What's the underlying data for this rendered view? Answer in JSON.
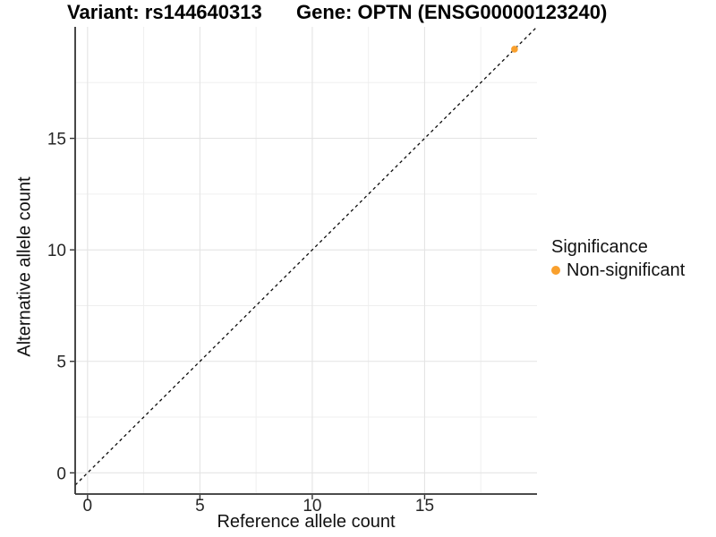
{
  "chart_data": {
    "type": "scatter",
    "title_left": "Variant: rs144640313",
    "title_right": "Gene: OPTN (ENSG00000123240)",
    "xlabel": "Reference allele count",
    "ylabel": "Alternative allele count",
    "xlim": [
      -0.55,
      20
    ],
    "ylim": [
      -0.95,
      20
    ],
    "x_major_ticks": [
      0,
      5,
      10,
      15
    ],
    "x_minor_ticks": [
      2.5,
      7.5,
      12.5,
      17.5
    ],
    "y_major_ticks": [
      0,
      5,
      10,
      15
    ],
    "y_minor_ticks": [
      2.5,
      7.5,
      12.5,
      17.5
    ],
    "grid": {
      "background": "#FFFFFF",
      "major_color": "#E4E4E4",
      "minor_color": "#EFEFEF"
    },
    "identity_line": {
      "slope": 1,
      "intercept": 0,
      "style": "dashed",
      "color": "#0A0A0A"
    },
    "series": [
      {
        "name": "Non-significant",
        "color": "#F9A02D",
        "points": [
          {
            "x": 19,
            "y": 19
          }
        ]
      }
    ],
    "legend": {
      "title": "Significance",
      "position": "right",
      "items": [
        {
          "label": "Non-significant",
          "color": "#F9A02D"
        }
      ]
    }
  }
}
